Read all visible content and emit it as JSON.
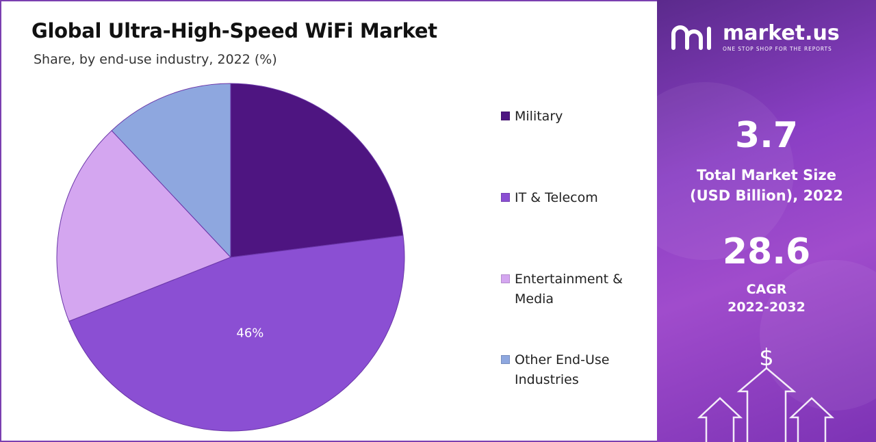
{
  "chart_data": {
    "type": "pie",
    "title": "Global Ultra-High-Speed WiFi Market",
    "subtitle": "Share, by end-use industry, 2022 (%)",
    "categories": [
      "Military",
      "IT & Telecom",
      "Entertainment & Media",
      "Other End-Use Industries"
    ],
    "values": [
      23,
      46,
      19,
      12
    ],
    "data_labels": [
      "",
      "46%",
      "",
      ""
    ],
    "colors": [
      "#4e1581",
      "#8b4fd3",
      "#d4a6f0",
      "#8ea7df"
    ],
    "legend_position": "right"
  },
  "legend": {
    "items": [
      {
        "label": "Military",
        "color": "#4e1581"
      },
      {
        "label": "IT & Telecom",
        "color": "#8b4fd3"
      },
      {
        "label": "Entertainment & Media",
        "color": "#d4a6f0"
      },
      {
        "label": "Other End-Use Industries",
        "color": "#8ea7df"
      }
    ]
  },
  "sidebar": {
    "brand_name": "market.us",
    "brand_tagline": "ONE STOP SHOP FOR THE REPORTS",
    "market_size_value": "3.7",
    "market_size_label_line1": "Total Market Size",
    "market_size_label_line2": "(USD Billion), 2022",
    "cagr_value": "28.6",
    "cagr_label_line1": "CAGR",
    "cagr_label_line2": "2022-2032",
    "dollar_symbol": "$",
    "icons": [
      "logo-icon",
      "dollar-icon",
      "arrow-up-icon"
    ]
  }
}
